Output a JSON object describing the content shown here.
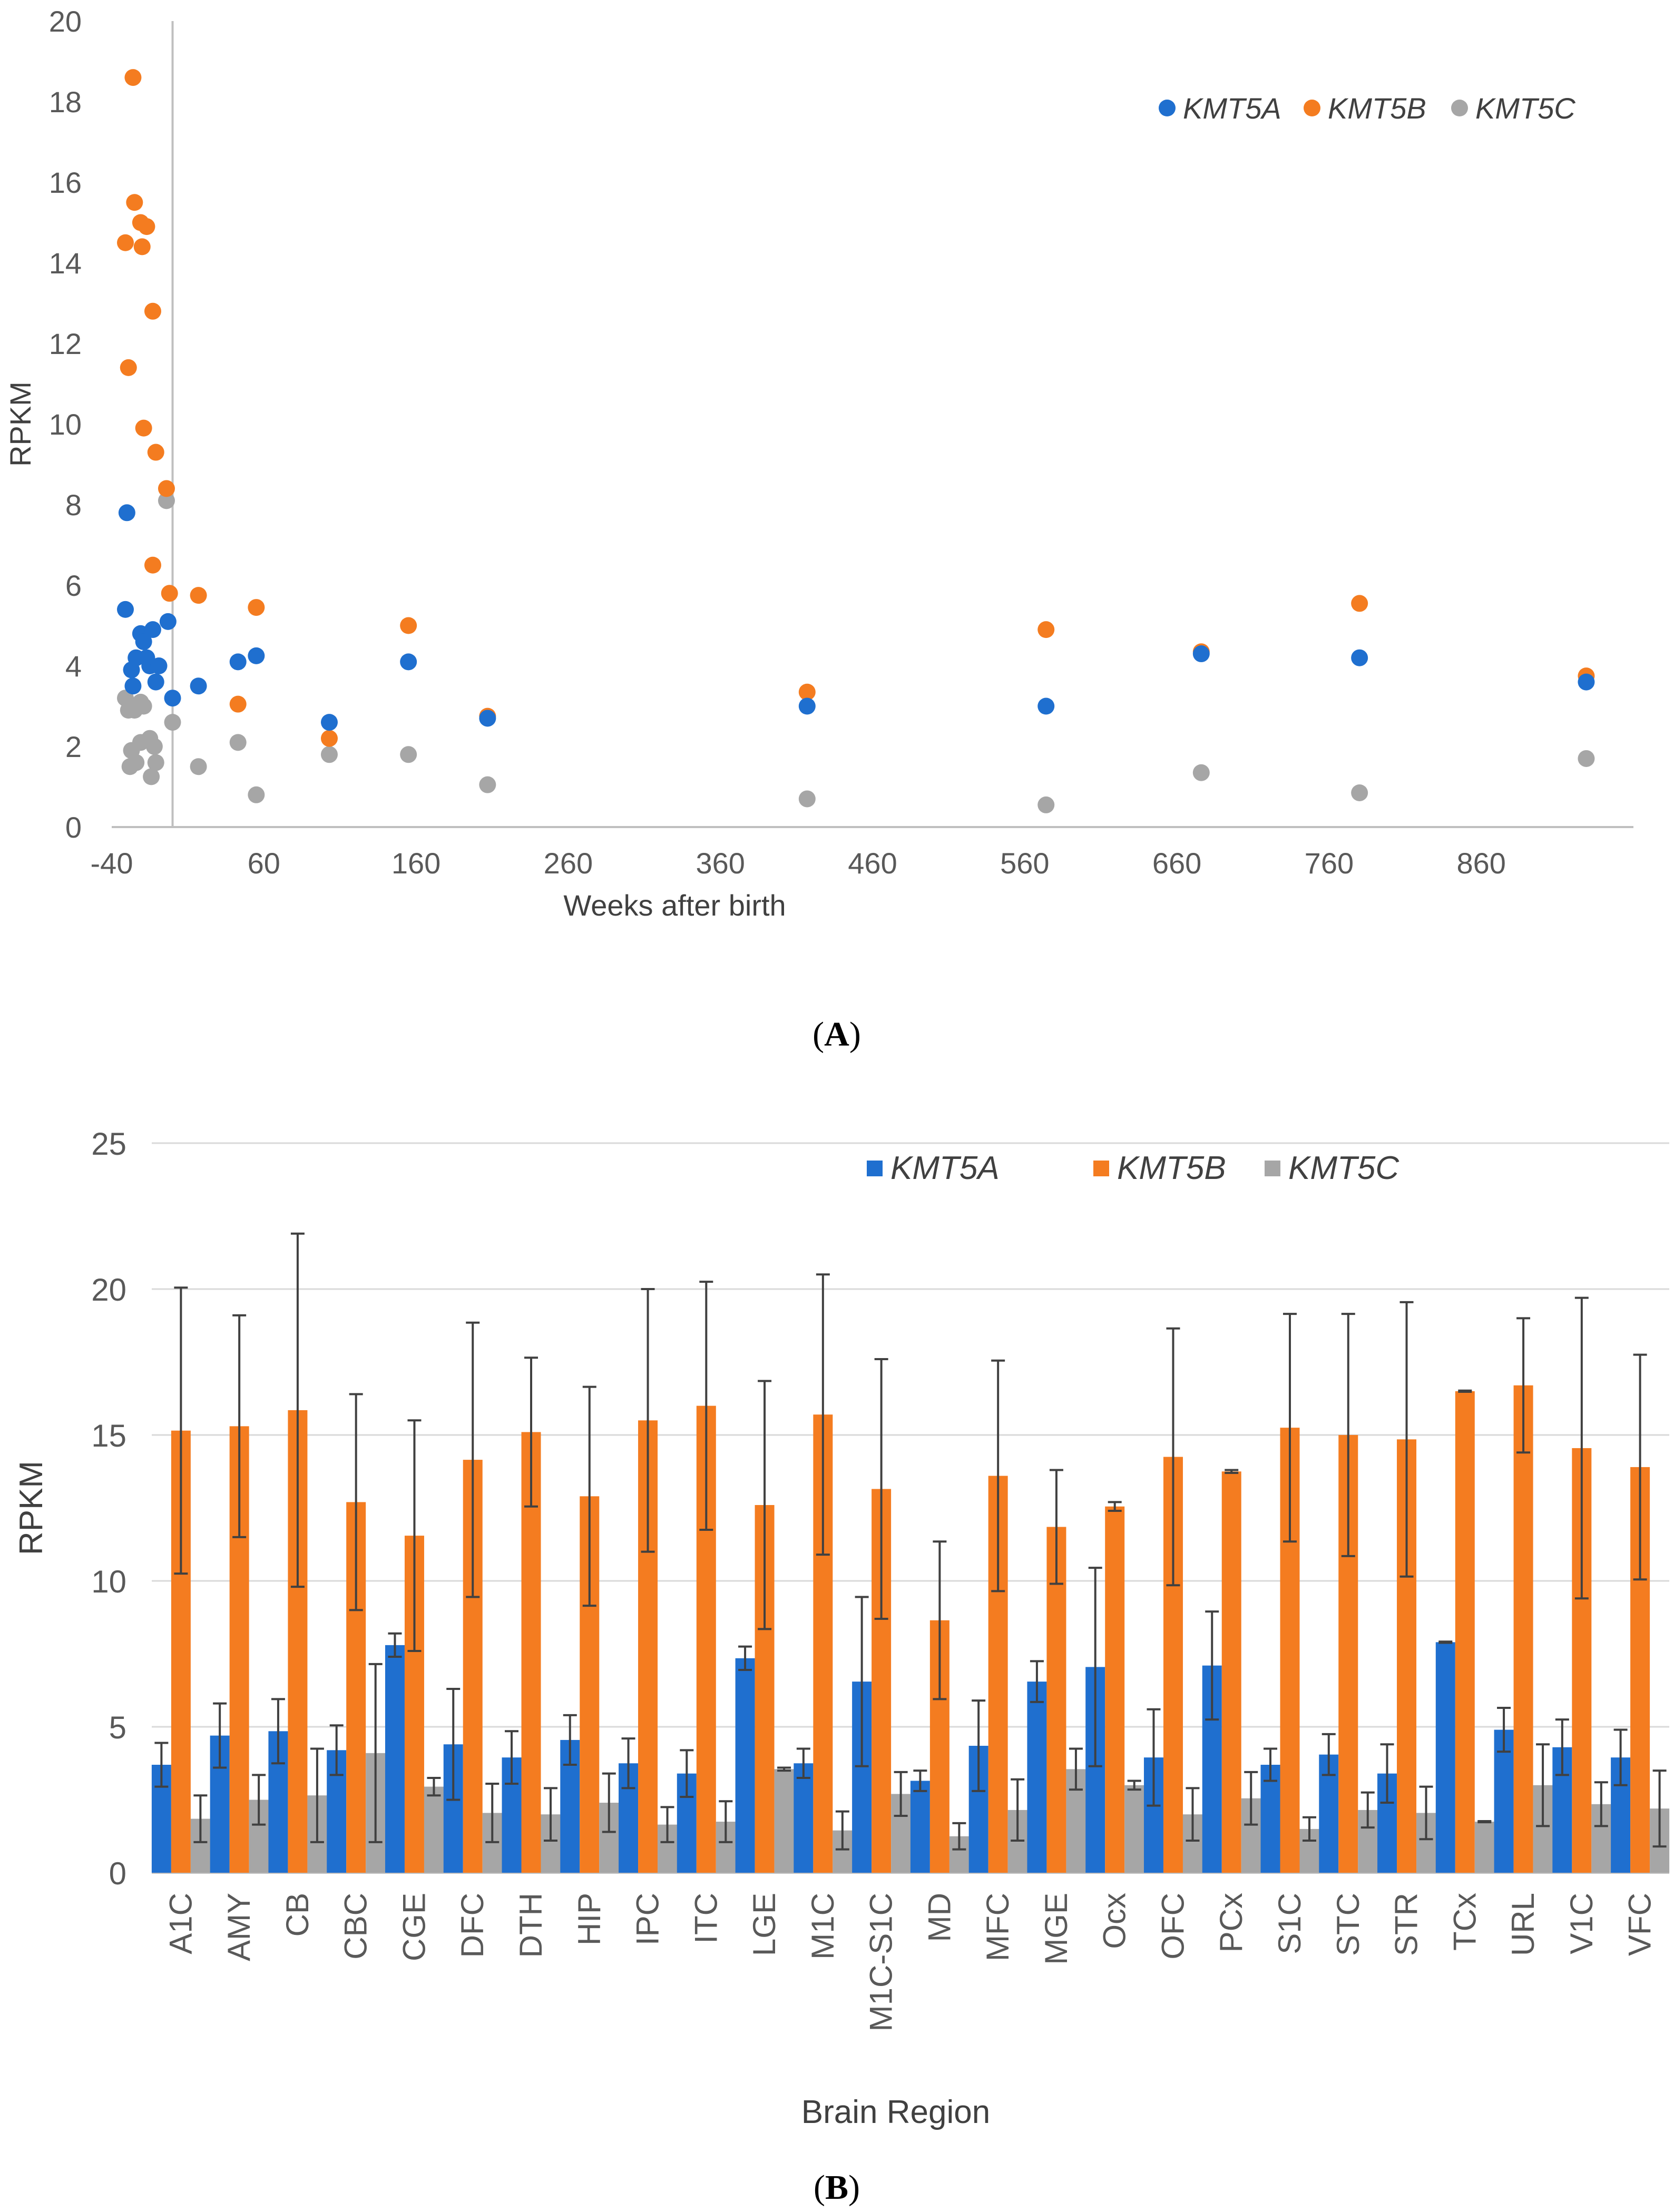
{
  "colors": {
    "KMT5A": "#1f6fcf",
    "KMT5B": "#f47c20",
    "KMT5C": "#a6a6a6",
    "axis": "#bfbfbf",
    "grid": "#d9d9d9",
    "errorbar": "#404040"
  },
  "panel_a": {
    "label_open": "(",
    "label_letter": "A",
    "label_close": ")"
  },
  "panel_b": {
    "label_open": "(",
    "label_letter": "B",
    "label_close": ")"
  },
  "chart_data": [
    {
      "type": "scatter",
      "xlabel": "Weeks after birth",
      "ylabel": "RPKM",
      "xlim": [
        -40,
        960
      ],
      "ylim": [
        0,
        20
      ],
      "x_ticks": [
        "-40",
        "60",
        "160",
        "260",
        "360",
        "460",
        "560",
        "660",
        "760",
        "860"
      ],
      "y_ticks": [
        "0",
        "2",
        "4",
        "6",
        "8",
        "10",
        "12",
        "14",
        "16",
        "18",
        "20"
      ],
      "vertical_line_x": 0,
      "legend": "top-right",
      "series": [
        {
          "name": "KMT5A",
          "points": [
            [
              -30,
              7.8
            ],
            [
              -31,
              5.4
            ],
            [
              -27,
              3.9
            ],
            [
              -26,
              3.5
            ],
            [
              -24,
              4.2
            ],
            [
              -21,
              4.8
            ],
            [
              -19,
              4.6
            ],
            [
              -17,
              4.2
            ],
            [
              -15,
              4.0
            ],
            [
              -13,
              4.9
            ],
            [
              -11,
              3.6
            ],
            [
              -9,
              4.0
            ],
            [
              -3,
              5.1
            ],
            [
              0,
              3.2
            ],
            [
              17,
              3.5
            ],
            [
              43,
              4.1
            ],
            [
              55,
              4.25
            ],
            [
              103,
              2.6
            ],
            [
              155,
              4.1
            ],
            [
              207,
              2.7
            ],
            [
              417,
              3.0
            ],
            [
              574,
              3.0
            ],
            [
              676,
              4.3
            ],
            [
              780,
              4.2
            ],
            [
              929,
              3.6
            ]
          ]
        },
        {
          "name": "KMT5B",
          "points": [
            [
              -26,
              18.6
            ],
            [
              -31,
              14.5
            ],
            [
              -25,
              15.5
            ],
            [
              -21,
              15.0
            ],
            [
              -17,
              14.9
            ],
            [
              -20,
              14.4
            ],
            [
              -13,
              12.8
            ],
            [
              -29,
              11.4
            ],
            [
              -19,
              9.9
            ],
            [
              -11,
              9.3
            ],
            [
              -4,
              8.4
            ],
            [
              -13,
              6.5
            ],
            [
              -2,
              5.8
            ],
            [
              17,
              5.75
            ],
            [
              55,
              5.45
            ],
            [
              43,
              3.05
            ],
            [
              103,
              2.2
            ],
            [
              155,
              5.0
            ],
            [
              207,
              2.75
            ],
            [
              417,
              3.35
            ],
            [
              574,
              4.9
            ],
            [
              676,
              4.35
            ],
            [
              780,
              5.55
            ],
            [
              929,
              3.75
            ]
          ]
        },
        {
          "name": "KMT5C",
          "points": [
            [
              -4,
              8.1
            ],
            [
              -31,
              3.2
            ],
            [
              -29,
              2.9
            ],
            [
              -25,
              2.9
            ],
            [
              -19,
              3.0
            ],
            [
              -21,
              3.1
            ],
            [
              -15,
              2.2
            ],
            [
              -21,
              2.1
            ],
            [
              -27,
              1.9
            ],
            [
              -24,
              1.6
            ],
            [
              -28,
              1.5
            ],
            [
              -12,
              2.0
            ],
            [
              -11,
              1.6
            ],
            [
              -14,
              1.25
            ],
            [
              0,
              2.6
            ],
            [
              17,
              1.5
            ],
            [
              43,
              2.1
            ],
            [
              55,
              0.8
            ],
            [
              103,
              1.8
            ],
            [
              155,
              1.8
            ],
            [
              207,
              1.05
            ],
            [
              417,
              0.7
            ],
            [
              574,
              0.55
            ],
            [
              676,
              1.35
            ],
            [
              780,
              0.85
            ],
            [
              929,
              1.7
            ]
          ]
        }
      ]
    },
    {
      "type": "bar",
      "xlabel": "Brain Region",
      "ylabel": "RPKM",
      "ylim": [
        0,
        25
      ],
      "y_ticks": [
        "0",
        "5",
        "10",
        "15",
        "20",
        "25"
      ],
      "legend": "top-right",
      "categories": [
        "A1C",
        "AMY",
        "CB",
        "CBC",
        "CGE",
        "DFC",
        "DTH",
        "HIP",
        "IPC",
        "ITC",
        "LGE",
        "M1C",
        "M1C-S1C",
        "MD",
        "MFC",
        "MGE",
        "Ocx",
        "OFC",
        "PCx",
        "S1C",
        "STC",
        "STR",
        "TCx",
        "URL",
        "V1C",
        "VFC"
      ],
      "series": [
        {
          "name": "KMT5A",
          "values": [
            3.7,
            4.7,
            4.85,
            4.2,
            7.8,
            4.4,
            3.95,
            4.55,
            3.75,
            3.4,
            7.35,
            3.75,
            6.55,
            3.15,
            4.35,
            6.55,
            7.05,
            3.95,
            7.1,
            3.7,
            4.05,
            3.4,
            7.9,
            4.9,
            4.3,
            3.95
          ],
          "errors": [
            0.75,
            1.1,
            1.1,
            0.85,
            0.4,
            1.9,
            0.9,
            0.85,
            0.85,
            0.8,
            0.4,
            0.5,
            2.9,
            0.35,
            1.55,
            0.7,
            3.4,
            1.65,
            1.85,
            0.55,
            0.7,
            1.0,
            0.02,
            0.75,
            0.95,
            0.95
          ]
        },
        {
          "name": "KMT5B",
          "values": [
            15.15,
            15.3,
            15.85,
            12.7,
            11.55,
            14.15,
            15.1,
            12.9,
            15.5,
            16.0,
            12.6,
            15.7,
            13.15,
            8.65,
            13.6,
            11.85,
            12.55,
            14.25,
            13.75,
            15.25,
            15.0,
            14.85,
            16.5,
            16.7,
            14.55,
            13.9
          ],
          "errors": [
            4.9,
            3.8,
            6.05,
            3.7,
            3.95,
            4.7,
            2.55,
            3.75,
            4.5,
            4.25,
            4.25,
            4.8,
            4.45,
            2.7,
            3.95,
            1.95,
            0.15,
            4.4,
            0.05,
            3.9,
            4.15,
            4.7,
            0.02,
            2.3,
            5.15,
            3.85
          ]
        },
        {
          "name": "KMT5C",
          "values": [
            1.85,
            2.5,
            2.65,
            4.1,
            2.95,
            2.05,
            2.0,
            2.4,
            1.65,
            1.75,
            3.55,
            1.45,
            2.7,
            1.25,
            2.15,
            3.55,
            3.0,
            2.0,
            2.55,
            1.5,
            2.15,
            2.05,
            1.75,
            3.0,
            2.35,
            2.2
          ],
          "errors": [
            0.8,
            0.85,
            1.6,
            3.05,
            0.3,
            1.0,
            0.9,
            1.0,
            0.6,
            0.7,
            0.05,
            0.65,
            0.75,
            0.45,
            1.05,
            0.7,
            0.15,
            0.9,
            0.9,
            0.4,
            0.6,
            0.9,
            0.02,
            1.4,
            0.75,
            1.3
          ]
        }
      ]
    }
  ]
}
